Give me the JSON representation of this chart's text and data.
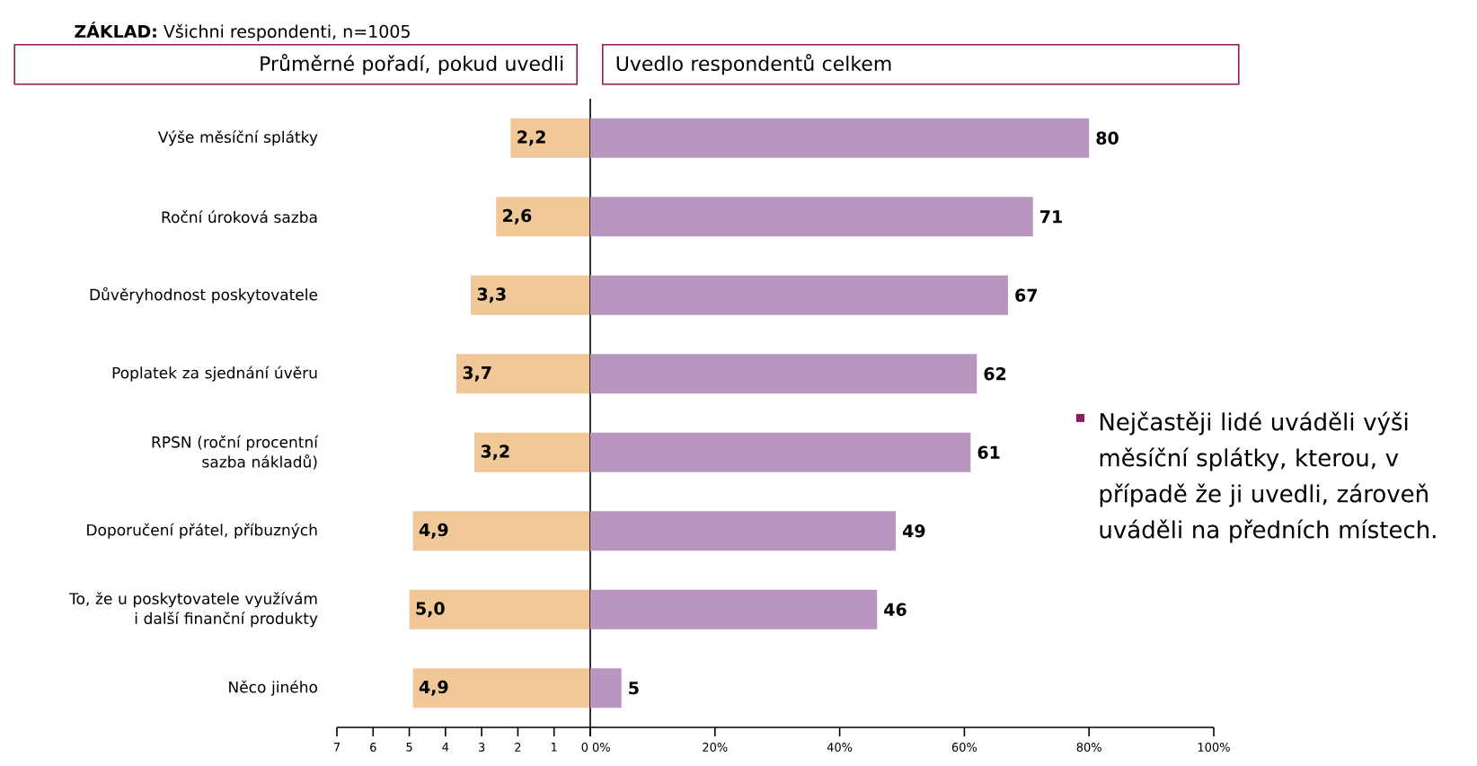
{
  "chart_data": [
    {
      "type": "bar",
      "orientation": "horizontal",
      "title": "Průměrné pořadí, pokud uvedli",
      "categories": [
        "Výše měsíční splátky",
        "Roční úroková sazba",
        "Důvěryhodnost poskytovatele",
        "Poplatek za sjednání úvěru",
        "RPSN (roční procentní sazba nákladů)",
        "Doporučení přátel, příbuzných",
        "To, že u poskytovatele využívám i další finanční produkty",
        "Něco jiného"
      ],
      "values": [
        2.2,
        2.6,
        3.3,
        3.7,
        3.2,
        4.9,
        5.0,
        4.9
      ],
      "value_labels": [
        "2,2",
        "2,6",
        "3,3",
        "3,7",
        "3,2",
        "4,9",
        "5,0",
        "4,9"
      ],
      "color": "#f0c898",
      "xlim": [
        7,
        0
      ],
      "xticks": [
        7,
        6,
        5,
        4,
        3,
        2,
        1,
        0
      ],
      "annotations": [
        "**ZÁKLAD:** Všichni respondenti, n=1005"
      ]
    },
    {
      "type": "bar",
      "orientation": "horizontal",
      "title": "Uvedlo respondentů celkem",
      "categories": [
        null,
        null,
        null,
        null,
        null,
        null,
        null,
        null
      ],
      "values": [
        80,
        71,
        67,
        62,
        61,
        49,
        46,
        5
      ],
      "color": "#b996bf",
      "xlim": [
        0,
        100
      ],
      "xticks": [
        {
          "value": 0,
          "label": "0%"
        },
        {
          "value": 20,
          "label": "20%"
        },
        {
          "value": 40,
          "label": "40%"
        },
        {
          "value": 60,
          "label": "60%"
        },
        {
          "value": 80,
          "label": "80%"
        },
        {
          "value": 100,
          "label": "100%"
        }
      ],
      "data_labels": true,
      "tick_labels": "x",
      "annotations": [
        "Nejčastěji lidé uváděli výši měsíční splátky, kterou, v případě že ji uvedli, zároveň uváděli na předních místech."
      ]
    }
  ]
}
